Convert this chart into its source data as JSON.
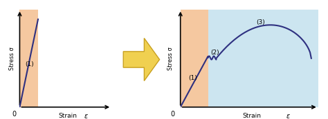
{
  "fig_width": 4.74,
  "fig_height": 1.73,
  "dpi": 100,
  "bg_color": "#ffffff",
  "left_plot": {
    "orange_bg": "#f5c8a0",
    "line_color": "#2e3080",
    "line_label": "(1)",
    "xlabel": "Strain",
    "xlabel_epsilon": "ε",
    "ylabel": "Stress σ",
    "zero_label": "0"
  },
  "right_plot": {
    "orange_bg": "#f5c8a0",
    "blue_bg": "#cce5f0",
    "line_color": "#2e3080",
    "label1": "(1)",
    "label2": "(2)",
    "label3": "(3)",
    "xlabel": "Strain",
    "xlabel_epsilon": "ε",
    "ylabel": "Stress σ",
    "zero_label": "0"
  },
  "arrow": {
    "color": "#f0d050",
    "edge_color": "#c8a020"
  }
}
